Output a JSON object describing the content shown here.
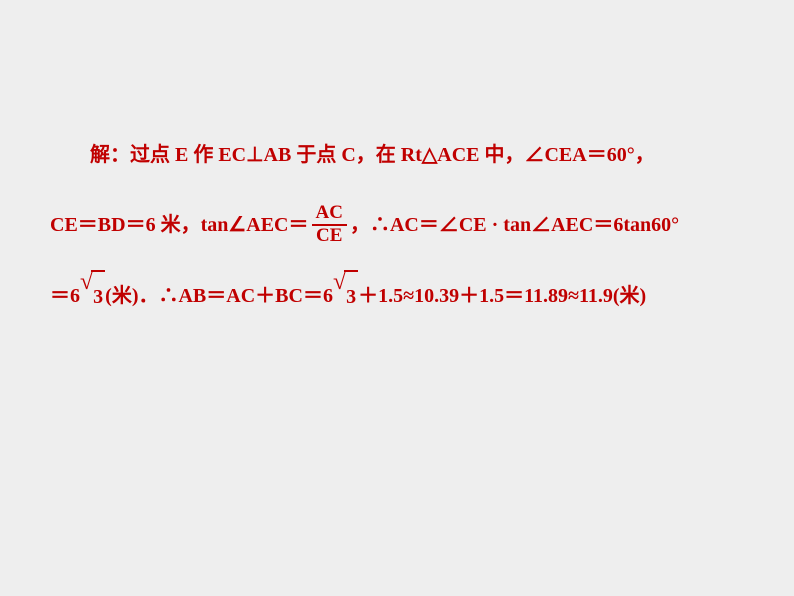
{
  "text_color": "#c00000",
  "background_color": "#eeeeee",
  "font_size": 20,
  "line1": {
    "t1": "解：过点 E 作 EC⊥AB 于点 C，在 Rt△ACE 中，∠CEA＝60°，"
  },
  "line2": {
    "t1": "CE＝BD＝6 米，tan∠AEC＝",
    "frac_num": "AC",
    "frac_den": "CE",
    "t2": "，∴AC＝∠CE · tan∠AEC＝6tan60°"
  },
  "line3": {
    "t1": "＝6",
    "sqrt1": "3",
    "t2": "(米)．∴AB＝AC＋BC＝6",
    "sqrt2": "3",
    "t3": "＋1.5≈10.39＋1.5＝11.89≈11.9(米)"
  }
}
